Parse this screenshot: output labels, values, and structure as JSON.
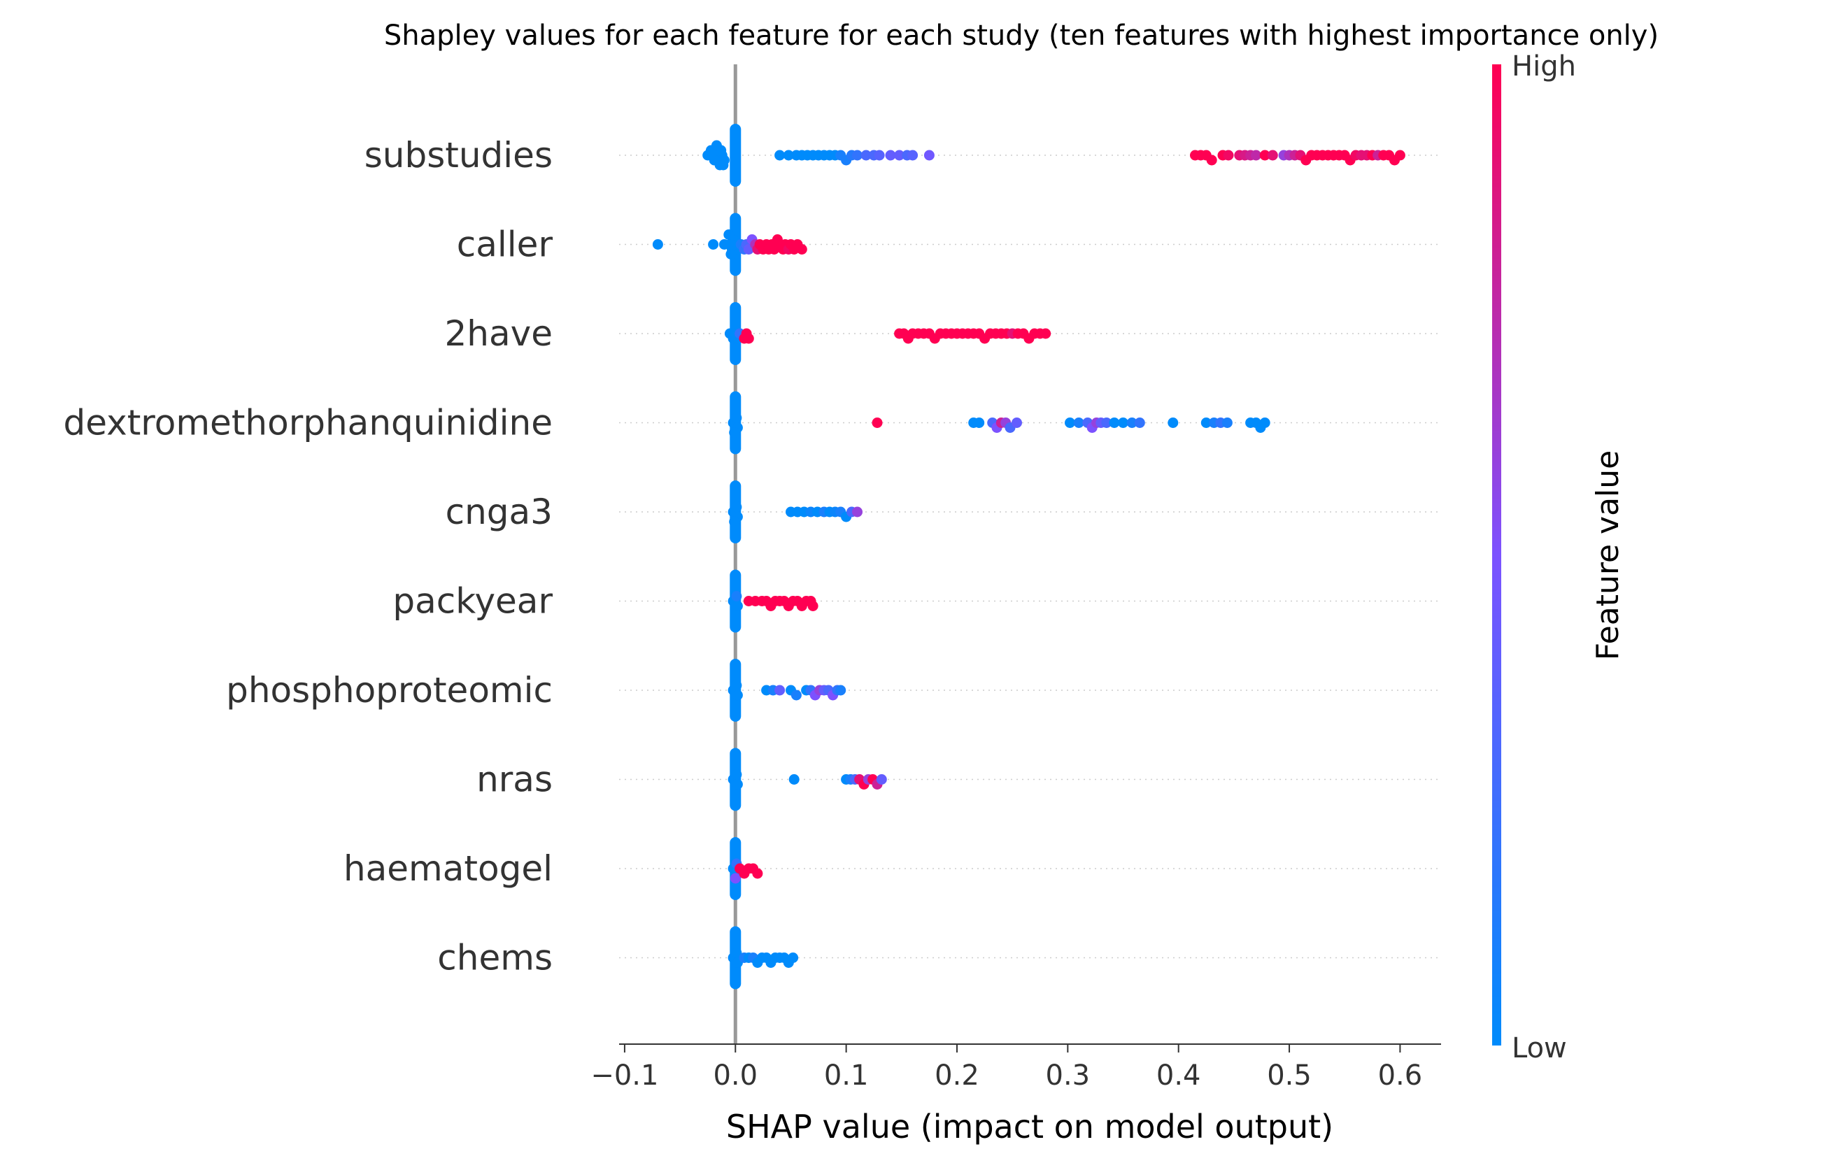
{
  "chart_data": {
    "type": "scatter",
    "title": "Shapley values for each feature for each study (ten features with highest importance only)",
    "xlabel": "SHAP value (impact on model output)",
    "xlim": [
      -0.105,
      0.637
    ],
    "x_ticks": [
      -0.1,
      0.0,
      0.1,
      0.2,
      0.3,
      0.4,
      0.5,
      0.6
    ],
    "x_tick_labels": [
      "−0.1",
      "0.0",
      "0.1",
      "0.2",
      "0.3",
      "0.4",
      "0.5",
      "0.6"
    ],
    "zero_line": 0.0,
    "colorbar": {
      "label": "Feature value",
      "high_label": "High",
      "low_label": "Low",
      "low_color": "#008bfb",
      "mid_color": "#7c52ff",
      "high_color": "#ff0052"
    },
    "features": [
      {
        "name": "substudies",
        "points": [
          [
            -0.012,
            0.0
          ],
          [
            -0.015,
            0.0
          ],
          [
            -0.018,
            0.0
          ],
          [
            -0.02,
            0.0
          ],
          [
            -0.025,
            0.0
          ],
          [
            -0.01,
            0.0
          ],
          [
            -0.013,
            0.0
          ],
          [
            -0.016,
            0.0
          ],
          [
            -0.019,
            0.0
          ],
          [
            -0.022,
            0.0
          ],
          [
            -0.014,
            0.0
          ],
          [
            -0.017,
            0.0
          ],
          [
            -0.011,
            0.0
          ],
          [
            0.04,
            0.0
          ],
          [
            0.048,
            0.0
          ],
          [
            0.055,
            0.0
          ],
          [
            0.06,
            0.0
          ],
          [
            0.065,
            0.0
          ],
          [
            0.07,
            0.0
          ],
          [
            0.075,
            0.0
          ],
          [
            0.08,
            0.0
          ],
          [
            0.085,
            0.0
          ],
          [
            0.09,
            0.0
          ],
          [
            0.095,
            0.1
          ],
          [
            0.1,
            0.1
          ],
          [
            0.105,
            0.15
          ],
          [
            0.11,
            0.2
          ],
          [
            0.118,
            0.3
          ],
          [
            0.125,
            0.3
          ],
          [
            0.13,
            0.35
          ],
          [
            0.14,
            0.4
          ],
          [
            0.148,
            0.4
          ],
          [
            0.155,
            0.3
          ],
          [
            0.16,
            0.35
          ],
          [
            0.175,
            0.45
          ],
          [
            0.415,
            1.0
          ],
          [
            0.42,
            1.0
          ],
          [
            0.425,
            1.0
          ],
          [
            0.43,
            1.0
          ],
          [
            0.44,
            1.0
          ],
          [
            0.445,
            0.95
          ],
          [
            0.455,
            0.9
          ],
          [
            0.46,
            0.85
          ],
          [
            0.465,
            0.8
          ],
          [
            0.47,
            0.75
          ],
          [
            0.478,
            1.0
          ],
          [
            0.485,
            0.9
          ],
          [
            0.495,
            0.6
          ],
          [
            0.5,
            0.7
          ],
          [
            0.505,
            0.8
          ],
          [
            0.51,
            0.9
          ],
          [
            0.515,
            1.0
          ],
          [
            0.52,
            1.0
          ],
          [
            0.525,
            1.0
          ],
          [
            0.53,
            1.0
          ],
          [
            0.535,
            1.0
          ],
          [
            0.54,
            1.0
          ],
          [
            0.545,
            1.0
          ],
          [
            0.55,
            1.0
          ],
          [
            0.555,
            1.0
          ],
          [
            0.56,
            0.95
          ],
          [
            0.565,
            0.9
          ],
          [
            0.57,
            0.9
          ],
          [
            0.575,
            1.0
          ],
          [
            0.58,
            0.8
          ],
          [
            0.585,
            1.0
          ],
          [
            0.59,
            1.0
          ],
          [
            0.595,
            1.0
          ],
          [
            0.6,
            1.0
          ]
        ]
      },
      {
        "name": "caller",
        "points": [
          [
            -0.07,
            0.0
          ],
          [
            -0.02,
            0.0
          ],
          [
            -0.01,
            0.0
          ],
          [
            -0.005,
            0.0
          ],
          [
            -0.003,
            0.0
          ],
          [
            -0.002,
            0.0
          ],
          [
            -0.004,
            0.0
          ],
          [
            -0.006,
            0.0
          ],
          [
            0.002,
            0.0
          ],
          [
            0.005,
            0.1
          ],
          [
            0.008,
            0.2
          ],
          [
            0.01,
            0.3
          ],
          [
            0.012,
            0.4
          ],
          [
            0.015,
            0.5
          ],
          [
            0.018,
            0.7
          ],
          [
            0.02,
            0.9
          ],
          [
            0.022,
            1.0
          ],
          [
            0.025,
            1.0
          ],
          [
            0.028,
            1.0
          ],
          [
            0.03,
            1.0
          ],
          [
            0.033,
            1.0
          ],
          [
            0.035,
            1.0
          ],
          [
            0.038,
            1.0
          ],
          [
            0.04,
            1.0
          ],
          [
            0.043,
            1.0
          ],
          [
            0.045,
            1.0
          ],
          [
            0.048,
            0.95
          ],
          [
            0.05,
            1.0
          ],
          [
            0.053,
            1.0
          ],
          [
            0.056,
            1.0
          ],
          [
            0.06,
            1.0
          ]
        ]
      },
      {
        "name": "2have",
        "points": [
          [
            -0.005,
            0.0
          ],
          [
            -0.002,
            0.0
          ],
          [
            0.0,
            0.0
          ],
          [
            0.002,
            0.0
          ],
          [
            0.004,
            0.2
          ],
          [
            0.008,
            1.0
          ],
          [
            0.01,
            1.0
          ],
          [
            0.012,
            1.0
          ],
          [
            0.148,
            1.0
          ],
          [
            0.152,
            1.0
          ],
          [
            0.156,
            1.0
          ],
          [
            0.16,
            1.0
          ],
          [
            0.165,
            1.0
          ],
          [
            0.17,
            1.0
          ],
          [
            0.175,
            1.0
          ],
          [
            0.18,
            1.0
          ],
          [
            0.185,
            1.0
          ],
          [
            0.19,
            1.0
          ],
          [
            0.195,
            1.0
          ],
          [
            0.2,
            1.0
          ],
          [
            0.205,
            1.0
          ],
          [
            0.21,
            1.0
          ],
          [
            0.215,
            1.0
          ],
          [
            0.22,
            1.0
          ],
          [
            0.225,
            1.0
          ],
          [
            0.23,
            1.0
          ],
          [
            0.235,
            1.0
          ],
          [
            0.24,
            1.0
          ],
          [
            0.245,
            1.0
          ],
          [
            0.25,
            0.9
          ],
          [
            0.255,
            1.0
          ],
          [
            0.26,
            1.0
          ],
          [
            0.265,
            1.0
          ],
          [
            0.27,
            1.0
          ],
          [
            0.275,
            1.0
          ],
          [
            0.28,
            1.0
          ]
        ]
      },
      {
        "name": "dextromethorphanquinidine",
        "points": [
          [
            -0.002,
            0.0
          ],
          [
            0.0,
            0.0
          ],
          [
            0.002,
            0.0
          ],
          [
            0.001,
            0.0
          ],
          [
            -0.001,
            0.0
          ],
          [
            0.128,
            1.0
          ],
          [
            0.215,
            0.0
          ],
          [
            0.22,
            0.0
          ],
          [
            0.232,
            0.3
          ],
          [
            0.236,
            0.5
          ],
          [
            0.24,
            0.8
          ],
          [
            0.244,
            0.6
          ],
          [
            0.248,
            0.3
          ],
          [
            0.254,
            0.4
          ],
          [
            0.302,
            0.0
          ],
          [
            0.31,
            0.1
          ],
          [
            0.318,
            0.3
          ],
          [
            0.322,
            0.5
          ],
          [
            0.326,
            0.6
          ],
          [
            0.33,
            0.4
          ],
          [
            0.335,
            0.3
          ],
          [
            0.342,
            0.0
          ],
          [
            0.35,
            0.0
          ],
          [
            0.358,
            0.1
          ],
          [
            0.365,
            0.2
          ],
          [
            0.395,
            0.0
          ],
          [
            0.425,
            0.0
          ],
          [
            0.432,
            0.1
          ],
          [
            0.438,
            0.2
          ],
          [
            0.444,
            0.1
          ],
          [
            0.465,
            0.0
          ],
          [
            0.47,
            0.0
          ],
          [
            0.474,
            0.0
          ],
          [
            0.478,
            0.0
          ]
        ]
      },
      {
        "name": "cnga3",
        "points": [
          [
            -0.002,
            0.0
          ],
          [
            0.0,
            0.0
          ],
          [
            0.002,
            0.0
          ],
          [
            0.001,
            0.0
          ],
          [
            -0.001,
            0.0
          ],
          [
            0.05,
            0.0
          ],
          [
            0.056,
            0.0
          ],
          [
            0.062,
            0.0
          ],
          [
            0.068,
            0.05
          ],
          [
            0.074,
            0.0
          ],
          [
            0.08,
            0.1
          ],
          [
            0.085,
            0.0
          ],
          [
            0.09,
            0.05
          ],
          [
            0.095,
            0.1
          ],
          [
            0.1,
            0.0
          ],
          [
            0.105,
            0.3
          ],
          [
            0.11,
            0.6
          ]
        ]
      },
      {
        "name": "packyear",
        "points": [
          [
            -0.002,
            0.0
          ],
          [
            0.0,
            0.0
          ],
          [
            0.002,
            0.0
          ],
          [
            0.001,
            0.1
          ],
          [
            0.012,
            1.0
          ],
          [
            0.018,
            1.0
          ],
          [
            0.024,
            1.0
          ],
          [
            0.028,
            1.0
          ],
          [
            0.032,
            1.0
          ],
          [
            0.036,
            1.0
          ],
          [
            0.04,
            1.0
          ],
          [
            0.044,
            1.0
          ],
          [
            0.048,
            1.0
          ],
          [
            0.052,
            1.0
          ],
          [
            0.056,
            1.0
          ],
          [
            0.06,
            1.0
          ],
          [
            0.064,
            1.0
          ],
          [
            0.068,
            1.0
          ],
          [
            0.07,
            1.0
          ]
        ]
      },
      {
        "name": "phosphoproteomic",
        "points": [
          [
            -0.002,
            0.0
          ],
          [
            0.0,
            0.0
          ],
          [
            0.002,
            0.0
          ],
          [
            0.001,
            0.0
          ],
          [
            0.028,
            0.0
          ],
          [
            0.034,
            0.1
          ],
          [
            0.04,
            0.4
          ],
          [
            0.05,
            0.0
          ],
          [
            0.055,
            0.1
          ],
          [
            0.064,
            0.0
          ],
          [
            0.068,
            0.2
          ],
          [
            0.072,
            0.5
          ],
          [
            0.076,
            0.6
          ],
          [
            0.08,
            0.4
          ],
          [
            0.084,
            0.3
          ],
          [
            0.088,
            0.5
          ],
          [
            0.092,
            0.2
          ],
          [
            0.095,
            0.1
          ]
        ]
      },
      {
        "name": "nras",
        "points": [
          [
            -0.002,
            0.0
          ],
          [
            0.0,
            0.0
          ],
          [
            0.002,
            0.0
          ],
          [
            0.001,
            0.0
          ],
          [
            0.053,
            0.0
          ],
          [
            0.1,
            0.0
          ],
          [
            0.104,
            0.1
          ],
          [
            0.108,
            0.3
          ],
          [
            0.112,
            0.9
          ],
          [
            0.116,
            1.0
          ],
          [
            0.12,
            0.6
          ],
          [
            0.124,
            1.0
          ],
          [
            0.128,
            0.8
          ],
          [
            0.132,
            0.4
          ]
        ]
      },
      {
        "name": "haematogel",
        "points": [
          [
            -0.002,
            0.0
          ],
          [
            0.0,
            0.0
          ],
          [
            0.002,
            0.0
          ],
          [
            0.001,
            0.2
          ],
          [
            0.0,
            0.5
          ],
          [
            0.004,
            1.0
          ],
          [
            0.008,
            1.0
          ],
          [
            0.012,
            1.0
          ],
          [
            0.016,
            1.0
          ],
          [
            0.02,
            1.0
          ]
        ]
      },
      {
        "name": "chems",
        "points": [
          [
            -0.002,
            0.0
          ],
          [
            0.0,
            0.0
          ],
          [
            0.002,
            0.0
          ],
          [
            0.001,
            0.0
          ],
          [
            0.008,
            0.1
          ],
          [
            0.012,
            0.0
          ],
          [
            0.016,
            0.1
          ],
          [
            0.02,
            0.0
          ],
          [
            0.024,
            0.0
          ],
          [
            0.028,
            0.0
          ],
          [
            0.032,
            0.0
          ],
          [
            0.036,
            0.0
          ],
          [
            0.04,
            0.0
          ],
          [
            0.044,
            0.0
          ],
          [
            0.048,
            0.0
          ],
          [
            0.052,
            0.0
          ]
        ]
      }
    ]
  }
}
